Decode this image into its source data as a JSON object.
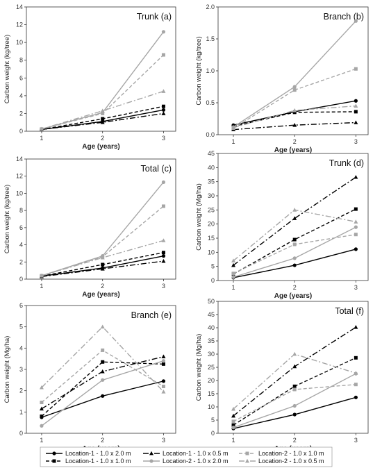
{
  "series_styles": [
    {
      "name": "Location-1 - 1.0 x 2.0 m",
      "color": "#000000",
      "dash": "",
      "marker": "circle"
    },
    {
      "name": "Location-1 - 1.0 x 1.0 m",
      "color": "#000000",
      "dash": "5,3",
      "marker": "square"
    },
    {
      "name": "Location-1 - 1.0 x 0.5 m",
      "color": "#000000",
      "dash": "8,3,2,3",
      "marker": "triangle"
    },
    {
      "name": "Location-2 - 1.0 x 2.0 m",
      "color": "#a6a6a6",
      "dash": "",
      "marker": "circle"
    },
    {
      "name": "Location-2 - 1.0 x 1.0 m",
      "color": "#a6a6a6",
      "dash": "5,3",
      "marker": "square"
    },
    {
      "name": "Location-2 - 1.0 x 0.5 m",
      "color": "#a6a6a6",
      "dash": "8,3,2,3",
      "marker": "triangle"
    }
  ],
  "chart_data": [
    {
      "id": "a",
      "type": "line",
      "title": "Trunk (a)",
      "xlabel": "Age (years)",
      "ylabel": "Carbon weight (kg/tree)",
      "x": [
        1,
        2,
        3
      ],
      "xlim": [
        0.75,
        3.2
      ],
      "ylim": [
        0,
        14
      ],
      "yticks": [
        0,
        2,
        4,
        6,
        8,
        10,
        12,
        14
      ],
      "series": [
        {
          "name": "Location-1 - 1.0 x 2.0 m",
          "values": [
            0.2,
            1.1,
            2.4
          ]
        },
        {
          "name": "Location-1 - 1.0 x 1.0 m",
          "values": [
            0.2,
            1.4,
            2.8
          ]
        },
        {
          "name": "Location-1 - 1.0 x 0.5 m",
          "values": [
            0.2,
            1.0,
            2.0
          ]
        },
        {
          "name": "Location-2 - 1.0 x 2.0 m",
          "values": [
            0.25,
            2.1,
            11.2
          ]
        },
        {
          "name": "Location-2 - 1.0 x 1.0 m",
          "values": [
            0.25,
            2.0,
            8.6
          ]
        },
        {
          "name": "Location-2 - 1.0 x 0.5 m",
          "values": [
            0.25,
            2.3,
            4.5
          ]
        }
      ]
    },
    {
      "id": "b",
      "type": "line",
      "title": "Branch (b)",
      "xlabel": "Age (years)",
      "ylabel": "Carbon weight (kg/tree)",
      "x": [
        1,
        2,
        3
      ],
      "xlim": [
        0.75,
        3.2
      ],
      "ylim": [
        0,
        2.0
      ],
      "yticks": [
        0.0,
        0.5,
        1.0,
        1.5,
        2.0
      ],
      "series": [
        {
          "name": "Location-1 - 1.0 x 2.0 m",
          "values": [
            0.15,
            0.36,
            0.53
          ]
        },
        {
          "name": "Location-1 - 1.0 x 1.0 m",
          "values": [
            0.13,
            0.35,
            0.36
          ]
        },
        {
          "name": "Location-1 - 1.0 x 0.5 m",
          "values": [
            0.08,
            0.15,
            0.19
          ]
        },
        {
          "name": "Location-2 - 1.0 x 2.0 m",
          "values": [
            0.12,
            0.75,
            1.78
          ]
        },
        {
          "name": "Location-2 - 1.0 x 1.0 m",
          "values": [
            0.1,
            0.7,
            1.03
          ]
        },
        {
          "name": "Location-2 - 1.0 x 0.5 m",
          "values": [
            0.11,
            0.38,
            0.45
          ]
        }
      ]
    },
    {
      "id": "c",
      "type": "line",
      "title": "Total (c)",
      "xlabel": "Age (years)",
      "ylabel": "Carbon weight (kg/tree)",
      "x": [
        1,
        2,
        3
      ],
      "xlim": [
        0.75,
        3.2
      ],
      "ylim": [
        0,
        14
      ],
      "yticks": [
        0,
        2,
        4,
        6,
        8,
        10,
        12,
        14
      ],
      "series": [
        {
          "name": "Location-1 - 1.0 x 2.0 m",
          "values": [
            0.35,
            1.3,
            2.7
          ]
        },
        {
          "name": "Location-1 - 1.0 x 1.0 m",
          "values": [
            0.35,
            1.7,
            3.1
          ]
        },
        {
          "name": "Location-1 - 1.0 x 0.5 m",
          "values": [
            0.3,
            1.2,
            2.1
          ]
        },
        {
          "name": "Location-2 - 1.0 x 2.0 m",
          "values": [
            0.4,
            2.7,
            11.3
          ]
        },
        {
          "name": "Location-2 - 1.0 x 1.0 m",
          "values": [
            0.4,
            2.6,
            8.5
          ]
        },
        {
          "name": "Location-2 - 1.0 x 0.5 m",
          "values": [
            0.4,
            2.5,
            4.5
          ]
        }
      ]
    },
    {
      "id": "d",
      "type": "line",
      "title": "Trunk (d)",
      "xlabel": "Age (years)",
      "ylabel": "Carbon weight (Mg/ha)",
      "x": [
        1,
        2,
        3
      ],
      "xlim": [
        0.75,
        3.2
      ],
      "ylim": [
        0,
        45
      ],
      "yticks": [
        0,
        5,
        10,
        15,
        20,
        25,
        30,
        35,
        40,
        45
      ],
      "series": [
        {
          "name": "Location-1 - 1.0 x 2.0 m",
          "values": [
            1.0,
            5.4,
            11.1
          ]
        },
        {
          "name": "Location-1 - 1.0 x 1.0 m",
          "values": [
            2.3,
            14.5,
            25.3
          ]
        },
        {
          "name": "Location-1 - 1.0 x 0.5 m",
          "values": [
            5.4,
            22.0,
            36.6
          ]
        },
        {
          "name": "Location-2 - 1.0 x 2.0 m",
          "values": [
            1.2,
            7.9,
            18.9
          ]
        },
        {
          "name": "Location-2 - 1.0 x 1.0 m",
          "values": [
            2.5,
            12.8,
            16.3
          ]
        },
        {
          "name": "Location-2 - 1.0 x 0.5 m",
          "values": [
            7.0,
            25.0,
            20.8
          ]
        }
      ]
    },
    {
      "id": "e",
      "type": "line",
      "title": "Branch (e)",
      "xlabel": "Age (years)",
      "ylabel": "Carbon weight (Mg/ha)",
      "x": [
        1,
        2,
        3
      ],
      "xlim": [
        0.75,
        3.2
      ],
      "ylim": [
        0,
        6
      ],
      "yticks": [
        0,
        1,
        2,
        3,
        4,
        5,
        6
      ],
      "series": [
        {
          "name": "Location-1 - 1.0 x 2.0 m",
          "values": [
            0.75,
            1.75,
            2.45
          ]
        },
        {
          "name": "Location-1 - 1.0 x 1.0 m",
          "values": [
            0.8,
            3.35,
            3.25
          ]
        },
        {
          "name": "Location-1 - 1.0 x 0.5 m",
          "values": [
            1.15,
            2.9,
            3.6
          ]
        },
        {
          "name": "Location-2 - 1.0 x 2.0 m",
          "values": [
            0.35,
            2.5,
            3.4
          ]
        },
        {
          "name": "Location-2 - 1.0 x 1.0 m",
          "values": [
            1.45,
            3.9,
            2.2
          ]
        },
        {
          "name": "Location-2 - 1.0 x 0.5 m",
          "values": [
            2.15,
            5.0,
            1.95
          ]
        }
      ]
    },
    {
      "id": "f",
      "type": "line",
      "title": "Total (f)",
      "xlabel": "Age (years)",
      "ylabel": "Carbon weight (Mg/ha)",
      "x": [
        1,
        2,
        3
      ],
      "xlim": [
        0.75,
        3.2
      ],
      "ylim": [
        0,
        50
      ],
      "yticks": [
        0,
        5,
        10,
        15,
        20,
        25,
        30,
        35,
        40,
        45,
        50
      ],
      "series": [
        {
          "name": "Location-1 - 1.0 x 2.0 m",
          "values": [
            1.8,
            7.1,
            13.6
          ]
        },
        {
          "name": "Location-1 - 1.0 x 1.0 m",
          "values": [
            3.1,
            17.8,
            28.6
          ]
        },
        {
          "name": "Location-1 - 1.0 x 0.5 m",
          "values": [
            6.6,
            25.3,
            40.2
          ]
        },
        {
          "name": "Location-2 - 1.0 x 2.0 m",
          "values": [
            2.2,
            10.4,
            22.6
          ]
        },
        {
          "name": "Location-2 - 1.0 x 1.0 m",
          "values": [
            4.5,
            16.6,
            18.5
          ]
        },
        {
          "name": "Location-2 - 1.0 x 0.5 m",
          "values": [
            9.2,
            30.0,
            22.8
          ]
        }
      ]
    }
  ],
  "legend": {
    "items": [
      "Location-1 - 1.0 x 2.0 m",
      "Location-1 - 1.0 x 1.0 m",
      "Location-1 - 1.0 x 0.5 m",
      "Location-2 - 1.0 x 2.0 m",
      "Location-2 - 1.0 x 1.0 m",
      "Location-2 - 1.0 x 0.5 m"
    ]
  }
}
